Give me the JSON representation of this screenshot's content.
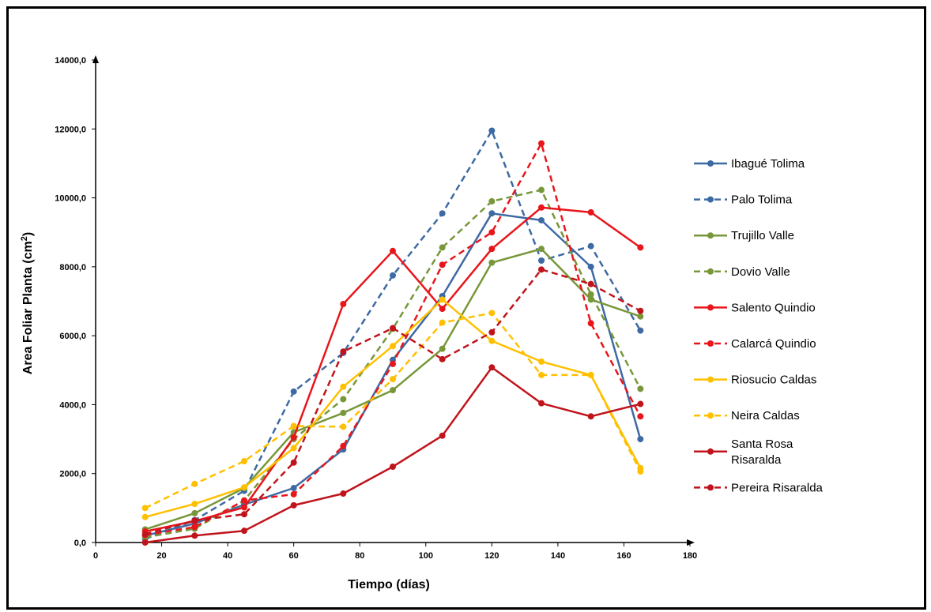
{
  "chart_data": {
    "type": "line",
    "title": "",
    "xlabel": "Tiempo (días)",
    "ylabel_main": "Area Foliar Planta (cm",
    "ylabel_sup": "2",
    "ylabel_close": ")",
    "xlim": [
      0,
      180
    ],
    "ylim": [
      0,
      14000
    ],
    "xticks": [
      0,
      20,
      40,
      60,
      80,
      100,
      120,
      140,
      160,
      180
    ],
    "xtick_labels": [
      "0",
      "20",
      "40",
      "60",
      "80",
      "100",
      "120",
      "140",
      "160",
      "180"
    ],
    "yticks": [
      0,
      2000,
      4000,
      6000,
      8000,
      10000,
      12000,
      14000
    ],
    "ytick_labels": [
      "0,0",
      "2000,0",
      "4000,0",
      "6000,0",
      "8000,0",
      "10000,0",
      "12000,0",
      "14000,0"
    ],
    "grid": false,
    "legend_position": "right",
    "x": [
      15,
      30,
      45,
      60,
      75,
      90,
      105,
      120,
      135,
      150,
      165
    ],
    "series": [
      {
        "name": "Ibagué Tolima",
        "color": "#3e6aa3",
        "dashed": false,
        "values": [
          200,
          550,
          1100,
          1580,
          2700,
          5300,
          7150,
          9550,
          9350,
          8000,
          3000
        ]
      },
      {
        "name": "Palo Tolima",
        "color": "#3e6aa3",
        "dashed": true,
        "values": [
          100,
          650,
          1500,
          4380,
          5500,
          7750,
          9550,
          11950,
          8180,
          8600,
          6150
        ]
      },
      {
        "name": "Trujillo Valle",
        "color": "#78973a",
        "dashed": false,
        "values": [
          380,
          850,
          1580,
          3200,
          3760,
          4420,
          5620,
          8120,
          8520,
          7050,
          6560
        ]
      },
      {
        "name": "Dovio Valle",
        "color": "#78973a",
        "dashed": true,
        "values": [
          150,
          400,
          1220,
          3000,
          4160,
          6200,
          8560,
          9900,
          10230,
          7200,
          4460
        ]
      },
      {
        "name": "Salento Quindio",
        "color": "#e8161b",
        "dashed": false,
        "values": [
          320,
          620,
          1020,
          3050,
          6920,
          8460,
          6780,
          8520,
          9720,
          9580,
          8560
        ]
      },
      {
        "name": "Calarcá Quindio",
        "color": "#e8161b",
        "dashed": true,
        "values": [
          220,
          450,
          1220,
          1400,
          2800,
          5180,
          8060,
          9000,
          11580,
          6360,
          3660
        ]
      },
      {
        "name": "Riosucio Caldas",
        "color": "#ffc000",
        "dashed": false,
        "values": [
          740,
          1120,
          1600,
          2740,
          4520,
          5700,
          7050,
          5850,
          5250,
          4860,
          2160
        ]
      },
      {
        "name": "Neira Caldas",
        "color": "#ffc000",
        "dashed": true,
        "values": [
          1000,
          1700,
          2360,
          3380,
          3360,
          4740,
          6380,
          6660,
          4860,
          4860,
          2060
        ]
      },
      {
        "name": "Santa Rosa Risaralda",
        "label_lines": [
          "Santa Rosa",
          "Risaralda"
        ],
        "color": "#c0141c",
        "dashed": false,
        "values": [
          0,
          200,
          340,
          1080,
          1420,
          2200,
          3100,
          5080,
          4040,
          3660,
          4020
        ]
      },
      {
        "name": "Pereira Risaralda",
        "color": "#c0141c",
        "dashed": true,
        "values": [
          240,
          640,
          820,
          2320,
          5540,
          6220,
          5320,
          6100,
          7920,
          7500,
          6720
        ]
      }
    ]
  }
}
